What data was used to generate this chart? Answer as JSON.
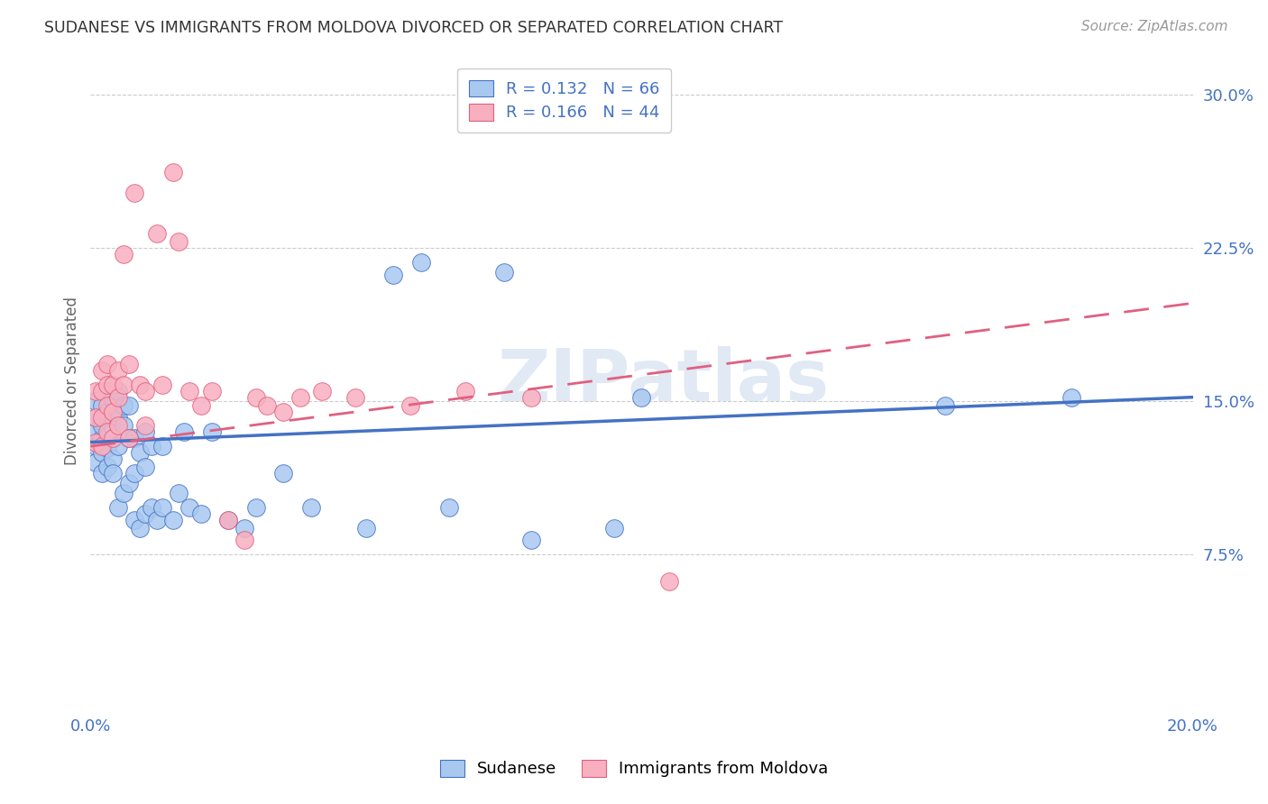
{
  "title": "SUDANESE VS IMMIGRANTS FROM MOLDOVA DIVORCED OR SEPARATED CORRELATION CHART",
  "source": "Source: ZipAtlas.com",
  "ylabel": "Divorced or Separated",
  "xlim": [
    0.0,
    0.2
  ],
  "ylim": [
    0.0,
    0.32
  ],
  "xtick_positions": [
    0.0,
    0.2
  ],
  "xtick_labels": [
    "0.0%",
    "20.0%"
  ],
  "ytick_positions": [
    0.075,
    0.15,
    0.225,
    0.3
  ],
  "ytick_labels": [
    "7.5%",
    "15.0%",
    "22.5%",
    "30.0%"
  ],
  "legend_labels": [
    "Sudanese",
    "Immigrants from Moldova"
  ],
  "blue_R": "R = 0.132",
  "blue_N": "N = 66",
  "pink_R": "R = 0.166",
  "pink_N": "N = 44",
  "blue_color": "#A8C8F0",
  "pink_color": "#F8B0C0",
  "blue_line_color": "#4472C4",
  "pink_line_color": "#E06080",
  "label_color": "#4472C4",
  "background_color": "#FFFFFF",
  "watermark": "ZIPatlas",
  "blue_scatter_x": [
    0.001,
    0.001,
    0.001,
    0.001,
    0.001,
    0.002,
    0.002,
    0.002,
    0.002,
    0.002,
    0.002,
    0.003,
    0.003,
    0.003,
    0.003,
    0.003,
    0.003,
    0.004,
    0.004,
    0.004,
    0.004,
    0.004,
    0.005,
    0.005,
    0.005,
    0.005,
    0.006,
    0.006,
    0.006,
    0.007,
    0.007,
    0.007,
    0.008,
    0.008,
    0.008,
    0.009,
    0.009,
    0.01,
    0.01,
    0.01,
    0.011,
    0.011,
    0.012,
    0.013,
    0.013,
    0.015,
    0.016,
    0.017,
    0.018,
    0.02,
    0.022,
    0.025,
    0.028,
    0.03,
    0.035,
    0.04,
    0.05,
    0.055,
    0.06,
    0.065,
    0.075,
    0.08,
    0.095,
    0.1,
    0.155,
    0.178
  ],
  "blue_scatter_y": [
    0.135,
    0.142,
    0.128,
    0.15,
    0.12,
    0.14,
    0.132,
    0.115,
    0.148,
    0.125,
    0.138,
    0.143,
    0.127,
    0.155,
    0.118,
    0.133,
    0.145,
    0.137,
    0.122,
    0.151,
    0.115,
    0.142,
    0.098,
    0.128,
    0.142,
    0.155,
    0.105,
    0.138,
    0.148,
    0.11,
    0.132,
    0.148,
    0.092,
    0.115,
    0.132,
    0.088,
    0.125,
    0.095,
    0.118,
    0.135,
    0.098,
    0.128,
    0.092,
    0.098,
    0.128,
    0.092,
    0.105,
    0.135,
    0.098,
    0.095,
    0.135,
    0.092,
    0.088,
    0.098,
    0.115,
    0.098,
    0.088,
    0.212,
    0.218,
    0.098,
    0.213,
    0.082,
    0.088,
    0.152,
    0.148,
    0.152
  ],
  "pink_scatter_x": [
    0.001,
    0.001,
    0.001,
    0.002,
    0.002,
    0.002,
    0.002,
    0.003,
    0.003,
    0.003,
    0.003,
    0.004,
    0.004,
    0.004,
    0.005,
    0.005,
    0.005,
    0.006,
    0.006,
    0.007,
    0.007,
    0.008,
    0.009,
    0.01,
    0.01,
    0.012,
    0.013,
    0.015,
    0.016,
    0.018,
    0.02,
    0.022,
    0.025,
    0.028,
    0.03,
    0.032,
    0.035,
    0.038,
    0.042,
    0.048,
    0.058,
    0.068,
    0.08,
    0.105
  ],
  "pink_scatter_y": [
    0.13,
    0.142,
    0.155,
    0.128,
    0.142,
    0.155,
    0.165,
    0.135,
    0.148,
    0.158,
    0.168,
    0.132,
    0.145,
    0.158,
    0.138,
    0.152,
    0.165,
    0.222,
    0.158,
    0.132,
    0.168,
    0.252,
    0.158,
    0.138,
    0.155,
    0.232,
    0.158,
    0.262,
    0.228,
    0.155,
    0.148,
    0.155,
    0.092,
    0.082,
    0.152,
    0.148,
    0.145,
    0.152,
    0.155,
    0.152,
    0.148,
    0.155,
    0.152,
    0.062
  ],
  "blue_line_x0": 0.0,
  "blue_line_y0": 0.13,
  "blue_line_x1": 0.2,
  "blue_line_y1": 0.152,
  "pink_line_x0": 0.0,
  "pink_line_y0": 0.128,
  "pink_line_x1": 0.2,
  "pink_line_y1": 0.198
}
